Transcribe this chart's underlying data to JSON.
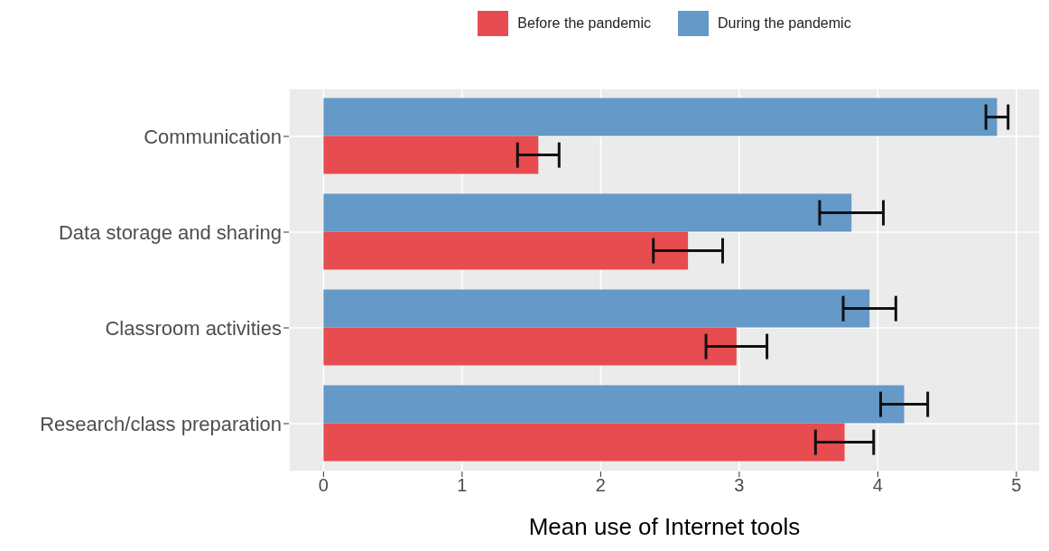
{
  "chart_data": {
    "type": "bar",
    "orientation": "horizontal",
    "xlabel": "Mean use of Internet tools",
    "categories": [
      "Communication",
      "Data storage and sharing",
      "Classroom activities",
      "Research/class preparation"
    ],
    "series": [
      {
        "name": "During the pandemic",
        "color": "#6499c8",
        "values": [
          4.86,
          3.81,
          3.94,
          4.19
        ],
        "errors": [
          0.08,
          0.23,
          0.19,
          0.17
        ]
      },
      {
        "name": "Before the pandemic",
        "color": "#e74c50",
        "values": [
          1.55,
          2.63,
          2.98,
          3.76
        ],
        "errors": [
          0.15,
          0.25,
          0.22,
          0.21
        ]
      }
    ],
    "xlim": [
      -0.25,
      5.17
    ],
    "xticks": [
      0,
      1,
      2,
      3,
      4,
      5
    ],
    "grid": true,
    "legend": "top"
  }
}
